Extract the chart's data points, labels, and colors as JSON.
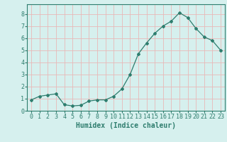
{
  "x": [
    0,
    1,
    2,
    3,
    4,
    5,
    6,
    7,
    8,
    9,
    10,
    11,
    12,
    13,
    14,
    15,
    16,
    17,
    18,
    19,
    20,
    21,
    22,
    23
  ],
  "y": [
    0.9,
    1.2,
    1.3,
    1.4,
    0.5,
    0.4,
    0.45,
    0.8,
    0.9,
    0.9,
    1.2,
    1.8,
    3.0,
    4.7,
    5.6,
    6.4,
    7.0,
    7.4,
    8.1,
    7.7,
    6.8,
    6.1,
    5.8,
    5.0
  ],
  "line_color": "#2e7d6e",
  "bg_color": "#d6f0ee",
  "grid_color": "#c8e8e4",
  "xlabel": "Humidex (Indice chaleur)",
  "xlabel_fontsize": 7,
  "tick_fontsize": 6,
  "ylim": [
    0,
    8.8
  ],
  "xlim": [
    -0.5,
    23.5
  ],
  "yticks": [
    0,
    1,
    2,
    3,
    4,
    5,
    6,
    7,
    8
  ],
  "xticks": [
    0,
    1,
    2,
    3,
    4,
    5,
    6,
    7,
    8,
    9,
    10,
    11,
    12,
    13,
    14,
    15,
    16,
    17,
    18,
    19,
    20,
    21,
    22,
    23
  ],
  "marker": "D",
  "marker_size": 2.0,
  "line_width": 0.9
}
